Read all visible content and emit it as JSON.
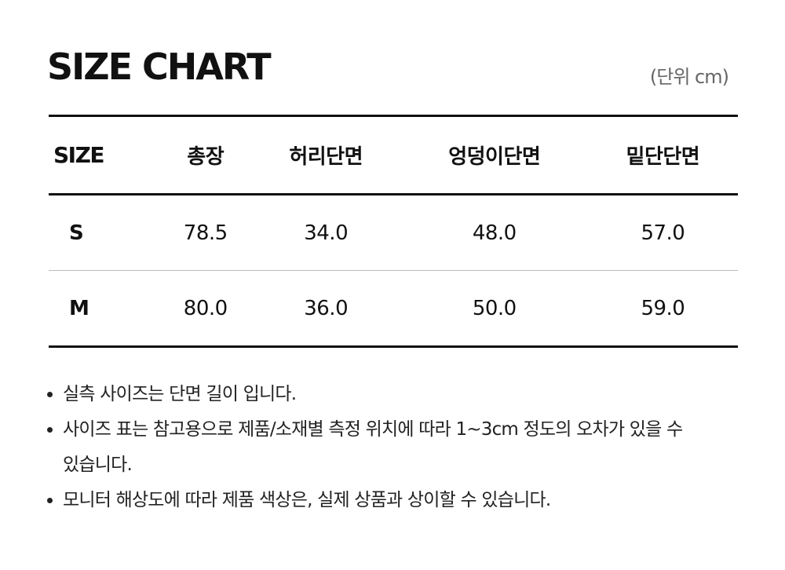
{
  "header": {
    "title": "SIZE CHART",
    "unit": "(단위 cm)"
  },
  "table": {
    "columns": [
      "SIZE",
      "총장",
      "허리단면",
      "엉덩이단면",
      "밑단단면"
    ],
    "rows": [
      [
        "S",
        "78.5",
        "34.0",
        "48.0",
        "57.0"
      ],
      [
        "M",
        "80.0",
        "36.0",
        "50.0",
        "59.0"
      ]
    ]
  },
  "notes": [
    "실측 사이즈는 단면 길이 입니다.",
    "사이즈 표는 참고용으로 제품/소재별 측정 위치에 따라 1~3cm 정도의 오차가 있을 수 있습니다.",
    "모니터 해상도에 따라 제품 색상은, 실제 상품과 상이할 수 있습니다."
  ]
}
